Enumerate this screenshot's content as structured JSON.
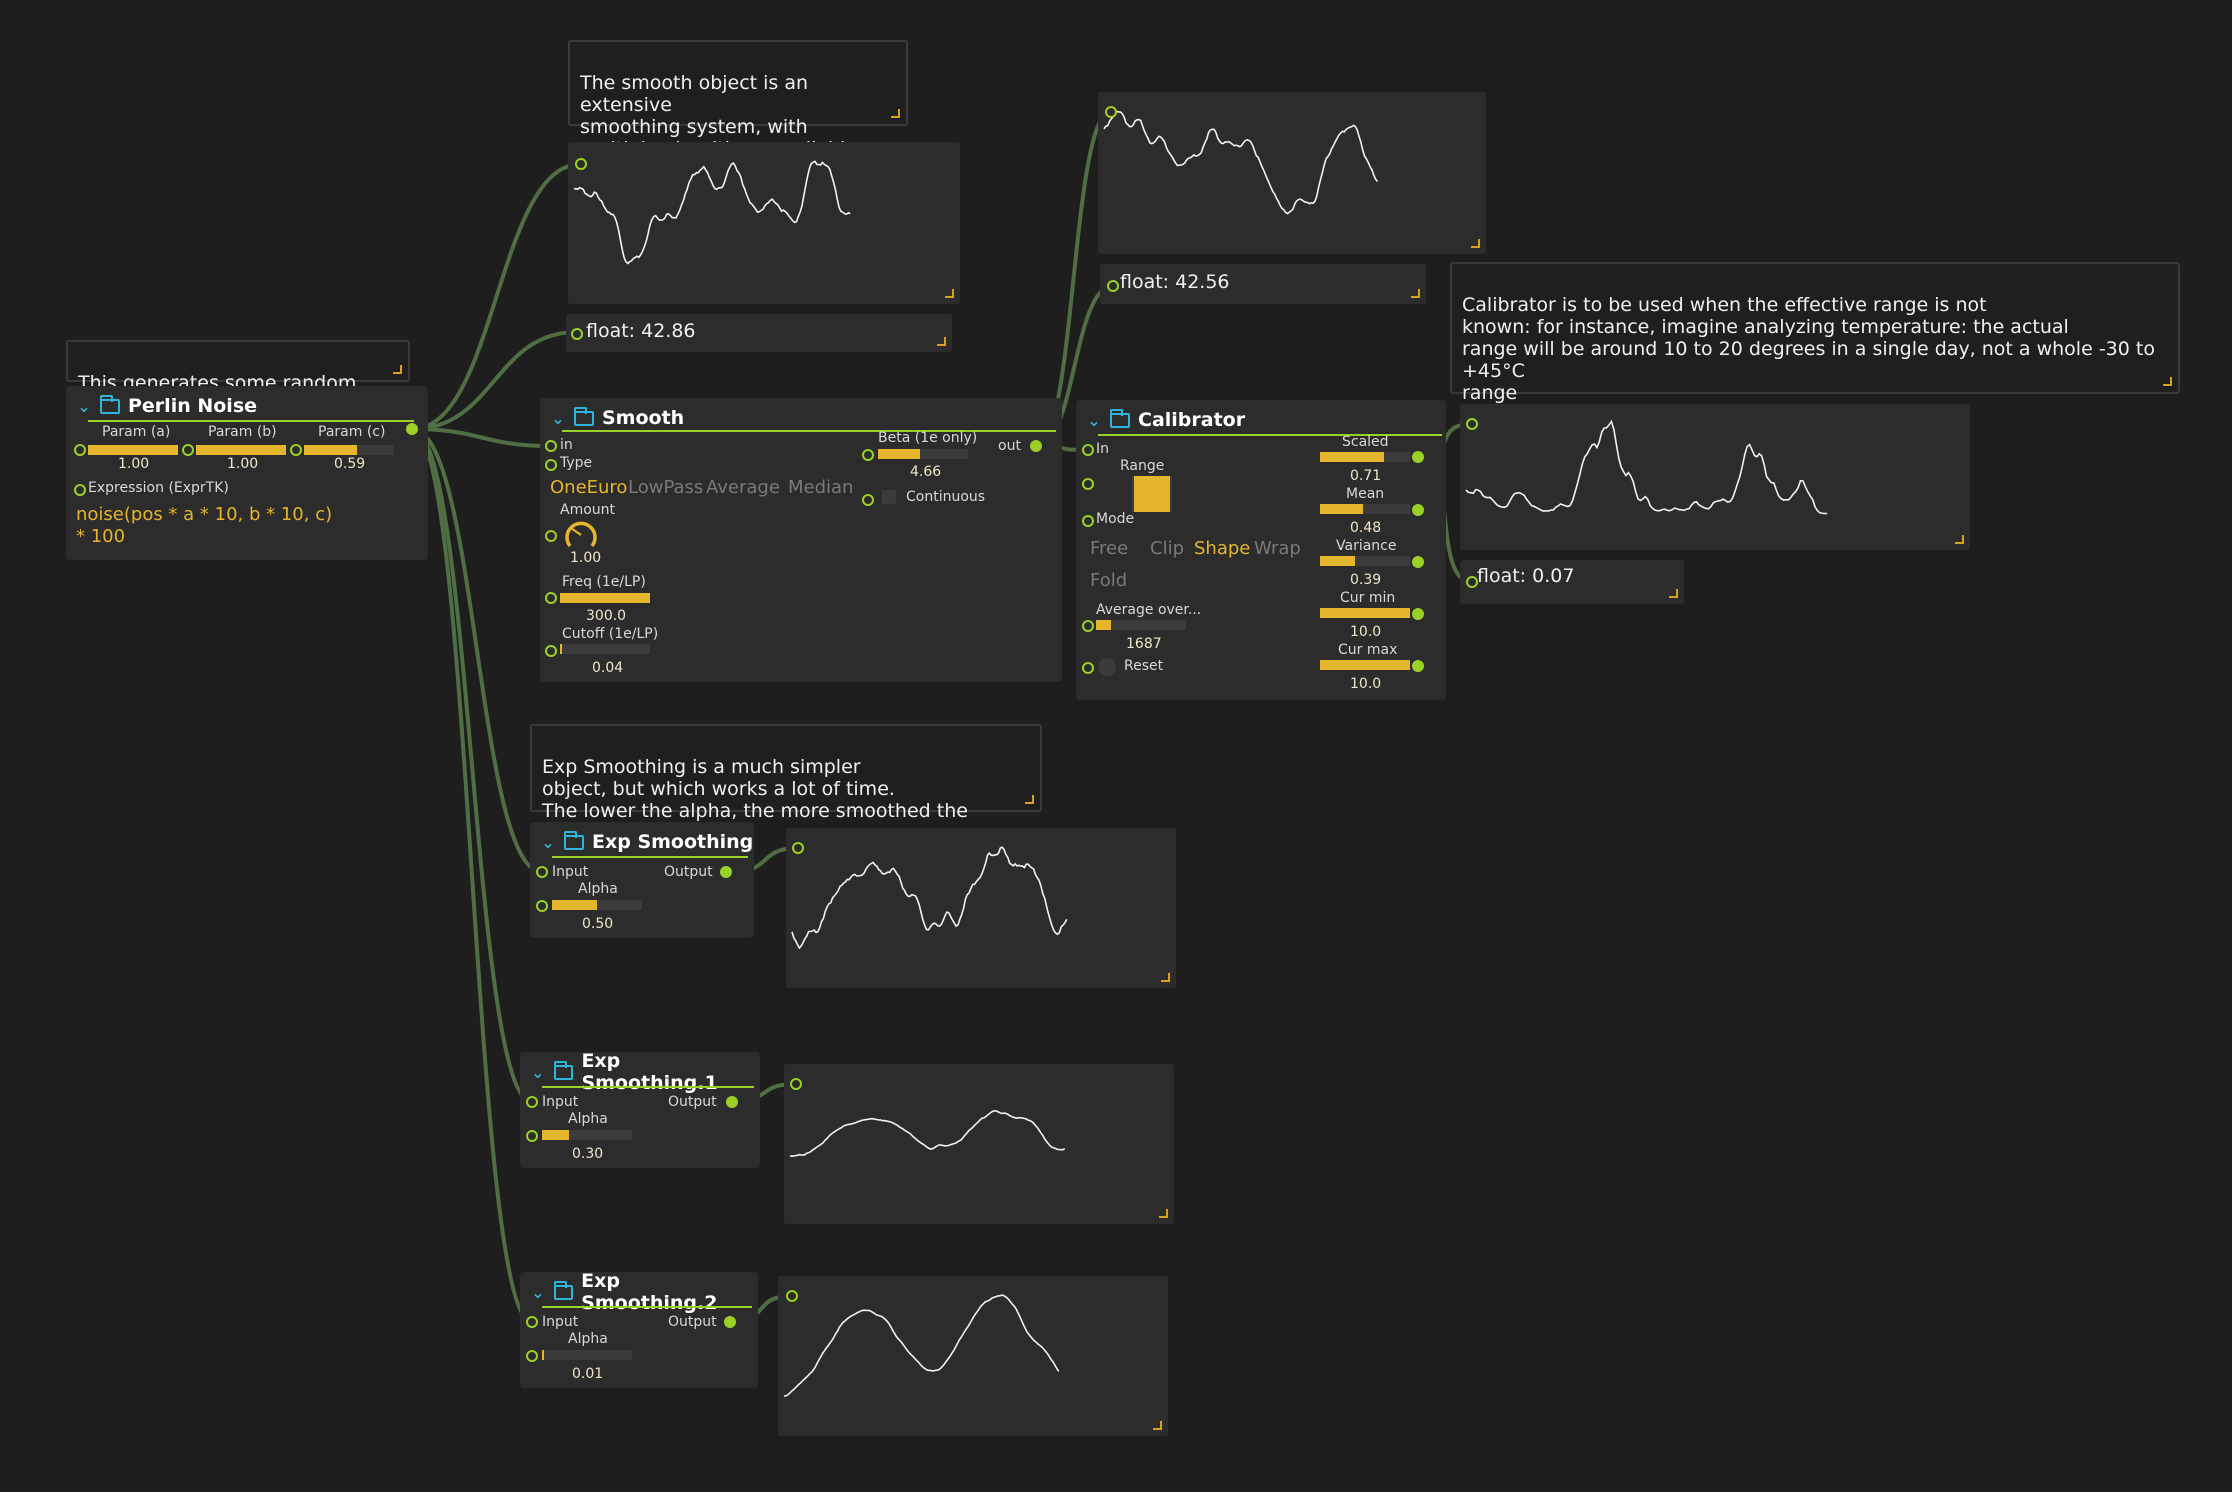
{
  "comments": {
    "smooth": "The smooth object is an extensive\nsmoothing system, with\nmultiple algorithms available.",
    "perlin": "This generates some random noise",
    "calibrator": "Calibrator is to be used when the effective range is not\nknown: for instance, imagine analyzing temperature: the actual\nrange will be around 10 to 20 degrees in a single day, not a whole -30 to +45°C\nrange",
    "exp": "Exp Smoothing is a much simpler\nobject, but which works a lot of time.\nThe lower the alpha, the more smoothed the signal is."
  },
  "perlin": {
    "title": "Perlin Noise",
    "params": [
      {
        "label": "Param (a)",
        "value": "1.00",
        "level": 1.0
      },
      {
        "label": "Param (b)",
        "value": "1.00",
        "level": 1.0
      },
      {
        "label": "Param (c)",
        "value": "0.59",
        "level": 0.59
      }
    ],
    "expr_label": "Expression (ExprTK)",
    "expr": "noise(pos * a * 10, b * 10, c)\n* 100"
  },
  "floats": {
    "f1": "float: 42.86",
    "f2": "float: 42.56",
    "f3": "float: 0.07"
  },
  "smooth": {
    "title": "Smooth",
    "in": "in",
    "type": "Type",
    "out": "out",
    "algorithms": [
      "OneEuro",
      "LowPass",
      "Average",
      "Median"
    ],
    "selected": 0,
    "amount_label": "Amount",
    "amount_value": "1.00",
    "freq_label": "Freq (1e/LP)",
    "freq_value": "300.0",
    "freq_level": 1.0,
    "cutoff_label": "Cutoff (1e/LP)",
    "cutoff_value": "0.04",
    "cutoff_level": 0.0,
    "beta_label": "Beta (1e only)",
    "beta_value": "4.66",
    "beta_level": 0.47,
    "continuous_label": "Continuous"
  },
  "calibrator": {
    "title": "Calibrator",
    "in": "In",
    "range_label": "Range",
    "mode_label": "Mode",
    "modes": [
      "Free",
      "Clip",
      "Shape",
      "Wrap",
      "Fold"
    ],
    "selected_mode": 2,
    "average_label": "Average over...",
    "average_value": "1687",
    "average_level": 0.17,
    "reset_label": "Reset",
    "outputs": [
      {
        "label": "Scaled",
        "value": "0.71",
        "level": 0.71
      },
      {
        "label": "Mean",
        "value": "0.48",
        "level": 0.48
      },
      {
        "label": "Variance",
        "value": "0.39",
        "level": 0.39
      },
      {
        "label": "Cur min",
        "value": "10.0",
        "level": 1.0
      },
      {
        "label": "Cur max",
        "value": "10.0",
        "level": 1.0
      }
    ]
  },
  "exp_nodes": [
    {
      "title": "Exp Smoothing",
      "input": "Input",
      "output": "Output",
      "alpha_label": "Alpha",
      "alpha_value": "0.50",
      "alpha_level": 0.5
    },
    {
      "title": "Exp Smoothing.1",
      "input": "Input",
      "output": "Output",
      "alpha_label": "Alpha",
      "alpha_value": "0.30",
      "alpha_level": 0.3
    },
    {
      "title": "Exp Smoothing.2",
      "input": "Input",
      "output": "Output",
      "alpha_label": "Alpha",
      "alpha_value": "0.01",
      "alpha_level": 0.01
    }
  ],
  "colors": {
    "background": "#1e1e1e",
    "node": "#2c2c2c",
    "port": "#9ad126",
    "slider": "#e5b52c",
    "header_icon": "#2fb5d9",
    "cable": "#4f6e43"
  },
  "icons": [
    "chevron-down-icon",
    "folder-icon",
    "resize-corner-icon",
    "knob-icon"
  ]
}
